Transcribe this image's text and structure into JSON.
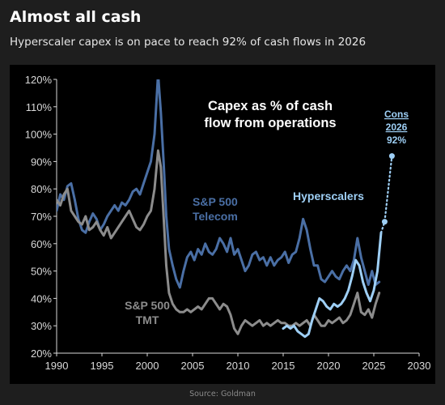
{
  "header": {
    "title": "Almost all cash",
    "subtitle": "Hyperscaler capex is on pace to reach 92% of cash flows in 2026"
  },
  "footer": {
    "source": "Source: Goldman"
  },
  "chart_data": {
    "type": "line",
    "title": "",
    "xlabel": "",
    "ylabel": "",
    "xlim": [
      1990,
      2030
    ],
    "ylim": [
      20,
      120
    ],
    "xticks": [
      1990,
      1995,
      2000,
      2005,
      2010,
      2015,
      2020,
      2025,
      2030
    ],
    "yticks": [
      20,
      30,
      40,
      50,
      60,
      70,
      80,
      90,
      100,
      110,
      120
    ],
    "ytick_suffix": "%",
    "grid": false,
    "legend": "none",
    "annotations": {
      "inner_title": [
        "Capex as % of cash",
        "flow from operations"
      ],
      "telecom_label": [
        "S&P 500",
        "Telecom"
      ],
      "tmt_label": [
        "S&P 500",
        "TMT"
      ],
      "hyperscalers_label": "Hyperscalers",
      "cons_label": [
        "Cons",
        "2026",
        "92%"
      ]
    },
    "series": [
      {
        "name": "S&P 500 Telecom",
        "color": "#4a6fa5",
        "x": [
          1990,
          1990.4,
          1990.8,
          1991.2,
          1991.6,
          1992,
          1992.4,
          1992.8,
          1993.2,
          1993.6,
          1994,
          1994.4,
          1994.8,
          1995.2,
          1995.6,
          1996,
          1996.4,
          1996.8,
          1997.2,
          1997.6,
          1998,
          1998.4,
          1998.8,
          1999.2,
          1999.6,
          2000,
          2000.4,
          2000.8,
          2001.2,
          2001.5,
          2001.8,
          2002.1,
          2002.4,
          2002.8,
          2003.2,
          2003.6,
          2004,
          2004.4,
          2004.8,
          2005.2,
          2005.6,
          2006,
          2006.4,
          2006.8,
          2007.2,
          2007.6,
          2008,
          2008.4,
          2008.8,
          2009.2,
          2009.6,
          2010,
          2010.4,
          2010.8,
          2011.2,
          2011.6,
          2012,
          2012.4,
          2012.8,
          2013.2,
          2013.6,
          2014,
          2014.4,
          2014.8,
          2015.2,
          2015.6,
          2016,
          2016.4,
          2016.8,
          2017.2,
          2017.6,
          2018,
          2018.4,
          2018.8,
          2019.2,
          2019.6,
          2020,
          2020.4,
          2020.8,
          2021.2,
          2021.6,
          2022,
          2022.4,
          2022.8,
          2023.2,
          2023.6,
          2024,
          2024.4,
          2024.8,
          2025.2,
          2025.6
        ],
        "y": [
          72,
          78,
          76,
          81,
          82,
          76,
          69,
          65,
          64,
          68,
          71,
          69,
          65,
          67,
          70,
          72,
          74,
          72,
          75,
          74,
          76,
          79,
          80,
          78,
          82,
          86,
          90,
          100,
          122,
          108,
          90,
          70,
          58,
          52,
          47,
          44,
          50,
          55,
          57,
          54,
          58,
          56,
          60,
          57,
          56,
          58,
          62,
          60,
          57,
          62,
          56,
          58,
          54,
          50,
          52,
          56,
          57,
          54,
          55,
          52,
          55,
          52,
          54,
          55,
          57,
          53,
          56,
          57,
          62,
          69,
          65,
          58,
          52,
          52,
          47,
          46,
          48,
          50,
          48,
          47,
          50,
          52,
          50,
          54,
          62,
          55,
          50,
          45,
          50,
          45,
          46
        ]
      },
      {
        "name": "S&P 500 TMT",
        "color": "#8c8c8c",
        "x": [
          1990,
          1990.4,
          1990.8,
          1991.2,
          1991.6,
          1992,
          1992.4,
          1992.8,
          1993.2,
          1993.6,
          1994,
          1994.4,
          1994.8,
          1995.2,
          1995.6,
          1996,
          1996.4,
          1996.8,
          1997.2,
          1997.6,
          1998,
          1998.4,
          1998.8,
          1999.2,
          1999.6,
          2000,
          2000.4,
          2000.8,
          2001.2,
          2001.5,
          2001.8,
          2002.1,
          2002.4,
          2002.8,
          2003.2,
          2003.6,
          2004,
          2004.4,
          2004.8,
          2005.2,
          2005.6,
          2006,
          2006.4,
          2006.8,
          2007.2,
          2007.6,
          2008,
          2008.4,
          2008.8,
          2009.2,
          2009.6,
          2010,
          2010.4,
          2010.8,
          2011.2,
          2011.6,
          2012,
          2012.4,
          2012.8,
          2013.2,
          2013.6,
          2014,
          2014.4,
          2014.8,
          2015.2,
          2015.6,
          2016,
          2016.4,
          2016.8,
          2017.2,
          2017.6,
          2018,
          2018.4,
          2018.8,
          2019.2,
          2019.6,
          2020,
          2020.4,
          2020.8,
          2021.2,
          2021.6,
          2022,
          2022.4,
          2022.8,
          2023.2,
          2023.6,
          2024,
          2024.4,
          2024.8,
          2025.2,
          2025.6
        ],
        "y": [
          76,
          74,
          78,
          80,
          72,
          70,
          68,
          67,
          70,
          65,
          66,
          68,
          65,
          63,
          66,
          62,
          64,
          66,
          68,
          70,
          72,
          69,
          66,
          65,
          67,
          70,
          72,
          80,
          94,
          88,
          70,
          52,
          42,
          38,
          36,
          35,
          35,
          36,
          35,
          36,
          37,
          36,
          38,
          40,
          40,
          38,
          36,
          38,
          37,
          34,
          29,
          27,
          30,
          32,
          31,
          30,
          31,
          32,
          30,
          31,
          30,
          31,
          32,
          31,
          31,
          30,
          30,
          31,
          30,
          31,
          32,
          30,
          34,
          32,
          30,
          30,
          32,
          31,
          32,
          33,
          31,
          32,
          34,
          38,
          42,
          35,
          34,
          36,
          33,
          38,
          42
        ]
      },
      {
        "name": "Hyperscalers",
        "color": "#9ecff5",
        "x": [
          2015,
          2015.4,
          2015.8,
          2016.2,
          2016.6,
          2017,
          2017.4,
          2017.8,
          2018.2,
          2018.6,
          2019,
          2019.4,
          2019.8,
          2020.2,
          2020.6,
          2021,
          2021.4,
          2021.8,
          2022.2,
          2022.6,
          2023,
          2023.4,
          2023.8,
          2024.2,
          2024.6,
          2025,
          2025.4,
          2025.8
        ],
        "y": [
          29,
          30,
          29,
          30,
          28,
          27,
          26,
          27,
          32,
          36,
          40,
          39,
          37,
          36,
          38,
          37,
          38,
          40,
          43,
          48,
          54,
          52,
          46,
          42,
          39,
          43,
          50,
          64
        ]
      },
      {
        "name": "Consensus projection",
        "color": "#9ecff5",
        "x": [
          2025.8,
          2026.2,
          2027
        ],
        "y": [
          64,
          68,
          92
        ]
      }
    ]
  }
}
